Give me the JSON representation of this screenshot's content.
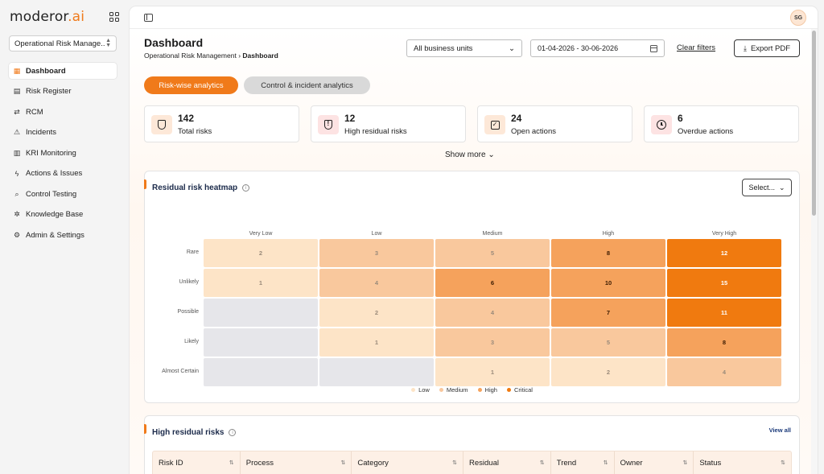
{
  "app": {
    "logo_main": "m",
    "logo_mid": "oderor",
    "logo_ai": ".ai",
    "workspace": "Operational Risk Manage..."
  },
  "sidebar": {
    "items": [
      {
        "label": "Dashboard",
        "icon": "dashboard-icon",
        "active": true
      },
      {
        "label": "Risk Register",
        "icon": "register-icon"
      },
      {
        "label": "RCM",
        "icon": "rcm-icon"
      },
      {
        "label": "Incidents",
        "icon": "warning-icon"
      },
      {
        "label": "KRI Monitoring",
        "icon": "kri-icon"
      },
      {
        "label": "Actions & Issues",
        "icon": "bolt-icon"
      },
      {
        "label": "Control Testing",
        "icon": "search-check-icon"
      },
      {
        "label": "Knowledge Base",
        "icon": "knowledge-icon"
      },
      {
        "label": "Admin & Settings",
        "icon": "settings-icon"
      }
    ]
  },
  "topbar": {
    "avatar": "SG"
  },
  "header": {
    "title": "Dashboard",
    "breadcrumb_parent": "Operational Risk Management",
    "breadcrumb_sep": "›",
    "breadcrumb_current": "Dashboard",
    "business_unit": "All business units",
    "date_range": "01-04-2026 - 30-06-2026",
    "clear_filters": "Clear filters",
    "export": "Export PDF"
  },
  "tabs": [
    {
      "label": "Risk-wise analytics",
      "active": true
    },
    {
      "label": "Control & incident analytics",
      "active": false
    }
  ],
  "kpis": [
    {
      "value": "142",
      "label": "Total risks",
      "icon": "shield-icon"
    },
    {
      "value": "12",
      "label": "High residual risks",
      "icon": "shield-alert-icon"
    },
    {
      "value": "24",
      "label": "Open actions",
      "icon": "checkbox-icon"
    },
    {
      "value": "6",
      "label": "Overdue actions",
      "icon": "clock-icon"
    }
  ],
  "show_more": "Show more",
  "heatmap": {
    "title": "Residual risk heatmap",
    "select_label": "Select...",
    "columns": [
      "Very Low",
      "Low",
      "Medium",
      "High",
      "Very High"
    ],
    "rows": [
      "Rare",
      "Unlikely",
      "Possible",
      "Likely",
      "Almost Certain"
    ],
    "values": [
      [
        "2",
        "3",
        "5",
        "8",
        "12"
      ],
      [
        "1",
        "4",
        "6",
        "10",
        "15"
      ],
      [
        "",
        "2",
        "4",
        "7",
        "11"
      ],
      [
        "",
        "1",
        "3",
        "5",
        "8"
      ],
      [
        "",
        "",
        "1",
        "2",
        "4"
      ]
    ],
    "levels": [
      [
        "low",
        "med",
        "med",
        "high",
        "crit"
      ],
      [
        "low",
        "med",
        "high",
        "high",
        "crit"
      ],
      [
        "none",
        "low",
        "med",
        "high",
        "crit"
      ],
      [
        "none",
        "low",
        "med",
        "med",
        "high"
      ],
      [
        "none",
        "none",
        "low",
        "low",
        "med"
      ]
    ],
    "colors": {
      "none": "#e6e6ea",
      "low": "#fde4c7",
      "med": "#f9c89d",
      "high": "#f5a25c",
      "crit": "#f07a0f"
    },
    "legend": [
      {
        "label": "Low",
        "color": "#fde4c7"
      },
      {
        "label": "Medium",
        "color": "#f9c89d"
      },
      {
        "label": "High",
        "color": "#f5a25c"
      },
      {
        "label": "Critical",
        "color": "#f07a0f"
      }
    ]
  },
  "high_residual": {
    "title": "High residual risks",
    "view_all": "View all",
    "columns": [
      "Risk ID",
      "Process",
      "Category",
      "Residual",
      "Trend",
      "Owner",
      "Status"
    ]
  }
}
